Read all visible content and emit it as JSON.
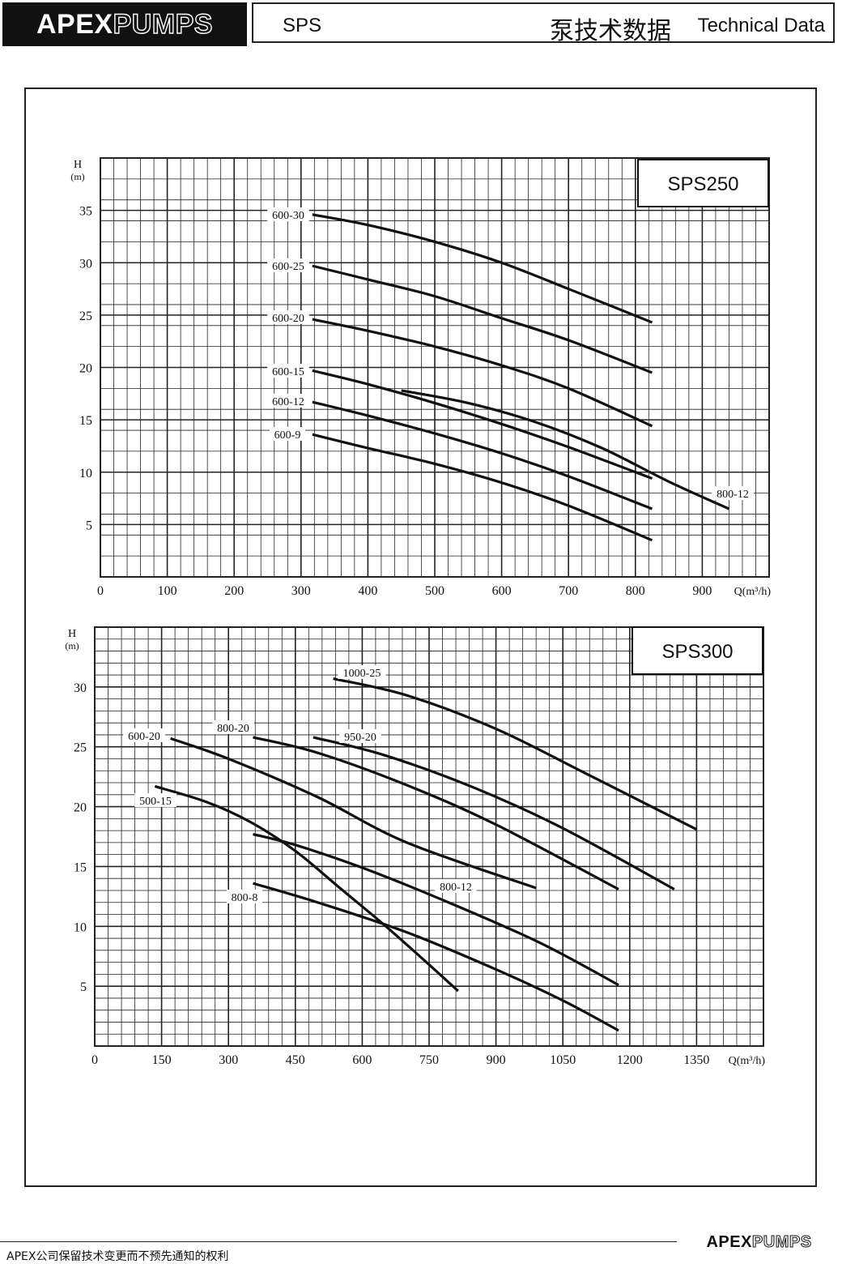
{
  "header": {
    "logo_bold": "APEX",
    "logo_outline": "PUMPS",
    "series": "SPS",
    "title_cn": "泵技术数据",
    "title_en": "Technical Data"
  },
  "footer": {
    "notice": "APEX公司保留技术变更而不预先通知的权利",
    "logo_bold": "APEX",
    "logo_outline": "PUMPS"
  },
  "colors": {
    "curve": "#111111",
    "grid": "#222222",
    "background": "#ffffff"
  },
  "chart_data": [
    {
      "type": "line",
      "title": "SPS250",
      "xlabel": "Q(m³/h)",
      "ylabel": "H",
      "ylabel_unit": "(m)",
      "xlim": [
        0,
        1000
      ],
      "ylim": [
        0,
        40
      ],
      "x_ticks": [
        0,
        100,
        200,
        300,
        400,
        500,
        600,
        700,
        800,
        900
      ],
      "y_ticks": [
        5,
        10,
        15,
        20,
        25,
        30,
        35
      ],
      "grid": true,
      "series": [
        {
          "name": "600-30",
          "x": [
            317,
            400,
            500,
            600,
            700,
            825
          ],
          "y": [
            34.6,
            33.6,
            32.0,
            30.0,
            27.5,
            24.3
          ]
        },
        {
          "name": "600-25",
          "x": [
            317,
            400,
            500,
            600,
            700,
            825
          ],
          "y": [
            29.7,
            28.4,
            26.8,
            24.7,
            22.6,
            19.5
          ]
        },
        {
          "name": "600-20",
          "x": [
            317,
            400,
            500,
            600,
            700,
            825
          ],
          "y": [
            24.6,
            23.5,
            22.0,
            20.2,
            18.0,
            14.4
          ]
        },
        {
          "name": "600-15",
          "x": [
            317,
            400,
            500,
            600,
            700,
            825
          ],
          "y": [
            19.7,
            18.4,
            16.6,
            14.6,
            12.4,
            9.4
          ]
        },
        {
          "name": "600-12",
          "x": [
            317,
            400,
            500,
            600,
            700,
            825
          ],
          "y": [
            16.7,
            15.4,
            13.7,
            11.8,
            9.6,
            6.5
          ]
        },
        {
          "name": "600-9",
          "x": [
            317,
            400,
            500,
            600,
            700,
            825
          ],
          "y": [
            13.6,
            12.3,
            10.8,
            9.0,
            6.8,
            3.5
          ]
        },
        {
          "name": "800-12",
          "x": [
            450,
            550,
            650,
            750,
            850,
            940
          ],
          "y": [
            17.8,
            16.6,
            14.8,
            12.3,
            9.1,
            6.5
          ]
        }
      ]
    },
    {
      "type": "line",
      "title": "SPS300",
      "xlabel": "Q(m³/h)",
      "ylabel": "H",
      "ylabel_unit": "(m)",
      "xlim": [
        0,
        1500
      ],
      "ylim": [
        0,
        35
      ],
      "x_ticks": [
        0,
        150,
        300,
        450,
        600,
        750,
        900,
        1050,
        1200,
        1350
      ],
      "y_ticks": [
        5,
        10,
        15,
        20,
        25,
        30
      ],
      "grid": true,
      "series": [
        {
          "name": "1000-25",
          "x": [
            535,
            700,
            900,
            1100,
            1350
          ],
          "y": [
            30.7,
            29.3,
            26.5,
            22.8,
            18.1
          ]
        },
        {
          "name": "950-20",
          "x": [
            490,
            650,
            850,
            1050,
            1300
          ],
          "y": [
            25.8,
            24.3,
            21.6,
            18.2,
            13.1
          ]
        },
        {
          "name": "800-20",
          "x": [
            355,
            500,
            700,
            900,
            1175
          ],
          "y": [
            25.8,
            24.5,
            21.8,
            18.5,
            13.1
          ]
        },
        {
          "name": "600-20",
          "x": [
            170,
            300,
            500,
            700,
            990
          ],
          "y": [
            25.7,
            24.0,
            20.8,
            17.0,
            13.2
          ]
        },
        {
          "name": "500-15",
          "x": [
            135,
            250,
            350,
            450,
            550,
            650,
            750,
            815
          ],
          "y": [
            21.7,
            20.4,
            18.7,
            16.3,
            13.2,
            10.1,
            6.8,
            4.6
          ]
        },
        {
          "name": "800-12",
          "x": [
            355,
            450,
            600,
            800,
            1000,
            1175
          ],
          "y": [
            17.7,
            16.8,
            14.9,
            11.9,
            8.6,
            5.1
          ]
        },
        {
          "name": "800-8",
          "x": [
            355,
            500,
            700,
            900,
            1050,
            1175
          ],
          "y": [
            13.6,
            12.0,
            9.5,
            6.4,
            3.8,
            1.3
          ]
        }
      ]
    }
  ]
}
